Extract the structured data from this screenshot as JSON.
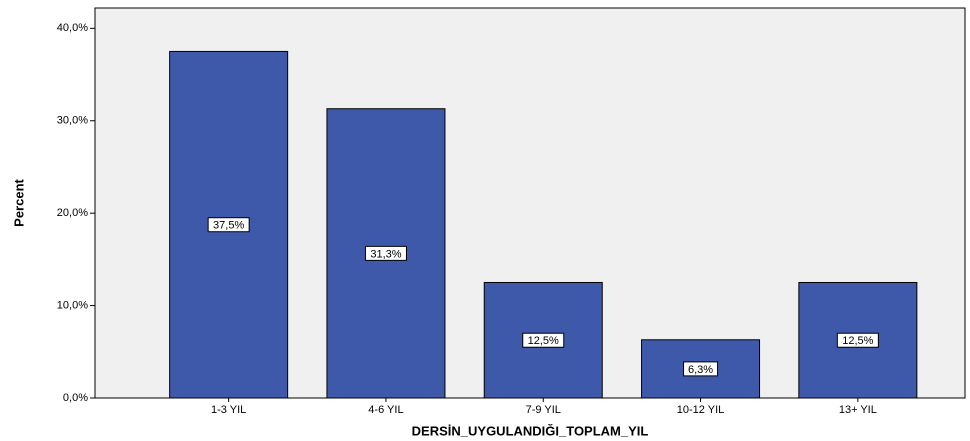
{
  "chart_data": {
    "type": "bar",
    "xlabel": "DERSİN_UYGULANDIĞI_TOPLAM_YIL",
    "ylabel": "Percent",
    "categories": [
      "1-3 YIL",
      "4-6 YIL",
      "7-9 YIL",
      "10-12 YIL",
      "13+ YIL"
    ],
    "values": [
      37.5,
      31.3,
      12.5,
      6.3,
      12.5
    ],
    "value_labels": [
      "37,5%",
      "31,3%",
      "12,5%",
      "6,3%",
      "12,5%"
    ],
    "color": "#3e59aa",
    "ylim": [
      0,
      42.2
    ],
    "yticks": [
      {
        "value": 0,
        "label": "0,0%"
      },
      {
        "value": 10,
        "label": "10,0%"
      },
      {
        "value": 20,
        "label": "20,0%"
      },
      {
        "value": 30,
        "label": "30,0%"
      },
      {
        "value": 40,
        "label": "40,0%"
      }
    ]
  }
}
